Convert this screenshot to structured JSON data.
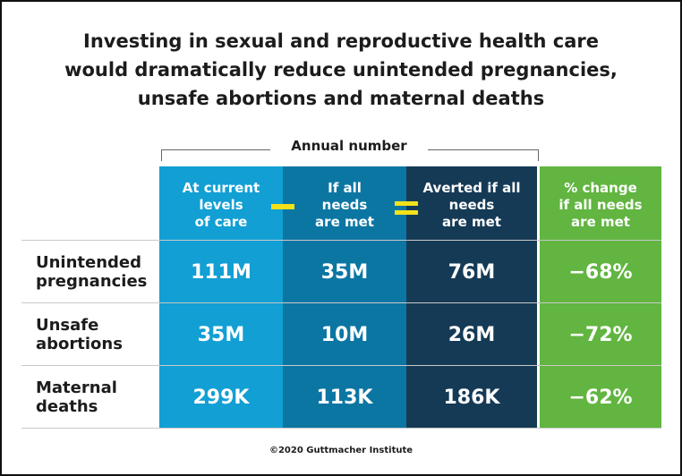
{
  "chart_data": {
    "type": "table",
    "title": "Investing in sexual and reproductive health care would dramatically reduce unintended pregnancies, unsafe abortions and maternal deaths",
    "title_lines": [
      "Investing in sexual and reproductive health care",
      "would dramatically reduce unintended pregnancies,",
      "unsafe abortions and maternal deaths"
    ],
    "group_label": "Annual number",
    "columns": [
      {
        "lines": [
          "At current",
          "levels",
          "of care"
        ],
        "color": "#129fd4"
      },
      {
        "lines": [
          "If all",
          "needs",
          "are met"
        ],
        "color": "#0c76a3"
      },
      {
        "lines": [
          "Averted if all",
          "needs",
          "are met"
        ],
        "color": "#153a56"
      },
      {
        "lines": [
          "% change",
          "if all needs",
          "are met"
        ],
        "color": "#61b540"
      }
    ],
    "operators": [
      "minus",
      "equals"
    ],
    "operator_color": "#f5e11a",
    "rows": [
      {
        "lines": [
          "Unintended",
          "pregnancies"
        ],
        "values": [
          "111M",
          "35M",
          "76M",
          "−68%"
        ]
      },
      {
        "lines": [
          "Unsafe",
          "abortions"
        ],
        "values": [
          "35M",
          "10M",
          "26M",
          "−72%"
        ]
      },
      {
        "lines": [
          "Maternal",
          "deaths"
        ],
        "values": [
          "299K",
          "113K",
          "186K",
          "−62%"
        ]
      }
    ],
    "numeric_values": {
      "unintended_pregnancies": {
        "current_millions": 111,
        "all_needs_met_millions": 35,
        "averted_millions": 76,
        "percent_change": -68
      },
      "unsafe_abortions": {
        "current_millions": 35,
        "all_needs_met_millions": 10,
        "averted_millions": 26,
        "percent_change": -72
      },
      "maternal_deaths": {
        "current_thousands": 299,
        "all_needs_met_thousands": 113,
        "averted_thousands": 186,
        "percent_change": -62
      }
    }
  },
  "footer": {
    "copyright": "©2020 Guttmacher Institute"
  }
}
